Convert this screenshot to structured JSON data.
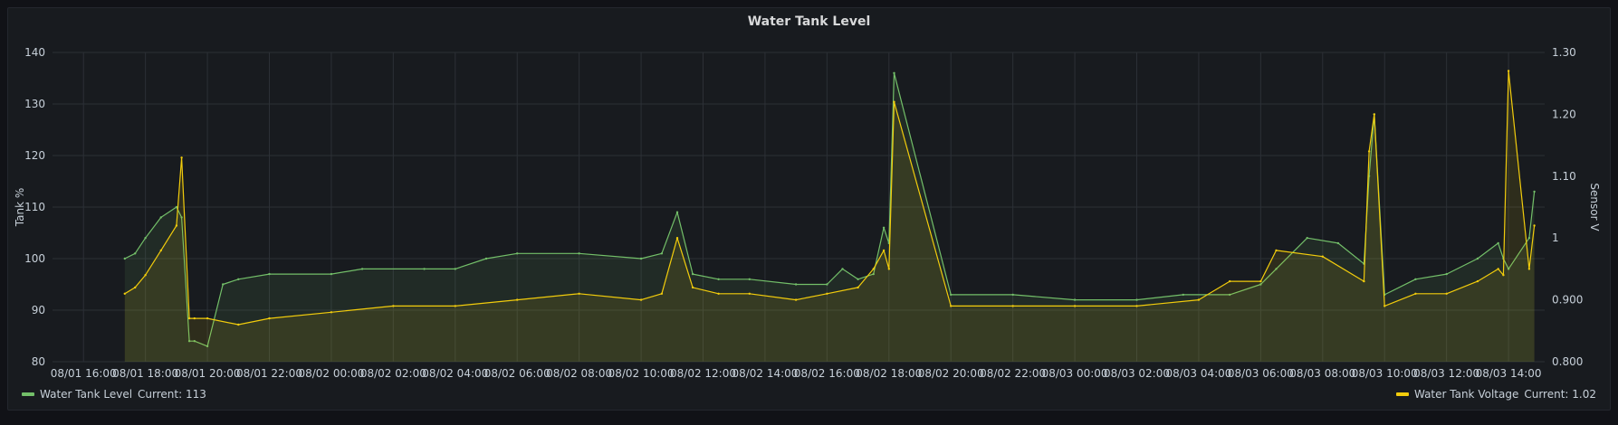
{
  "panel": {
    "title": "Water Tank Level"
  },
  "chart_data": {
    "type": "line",
    "title": "Water Tank Level",
    "ylabel_left": "Tank %",
    "ylabel_right": "Sensor V",
    "ylim_left": [
      80,
      140
    ],
    "yticks_left": [
      "140",
      "130",
      "120",
      "110",
      "100",
      "90",
      "80"
    ],
    "ylim_right": [
      0.8,
      1.3
    ],
    "yticks_right": [
      "1.30",
      "1.20",
      "1.10",
      "1",
      "0.900",
      "0.800"
    ],
    "grid": true,
    "legend": "bottom",
    "xtick_labels": [
      "08/01 16:00",
      "08/01 18:00",
      "08/01 20:00",
      "08/01 22:00",
      "08/02 00:00",
      "08/02 02:00",
      "08/02 04:00",
      "08/02 06:00",
      "08/02 08:00",
      "08/02 10:00",
      "08/02 12:00",
      "08/02 14:00",
      "08/02 16:00",
      "08/02 18:00",
      "08/02 20:00",
      "08/02 22:00",
      "08/03 00:00",
      "08/03 02:00",
      "08/03 04:00",
      "08/03 06:00",
      "08/03 08:00",
      "08/03 10:00",
      "08/03 12:00",
      "08/03 14:00"
    ],
    "series": [
      {
        "name": "Water Tank Level",
        "axis": "left",
        "color": "#73bf69",
        "legend_label": "Water Tank Level",
        "current": "Current: 113",
        "x": [
          "08/01 17:20",
          "08/01 17:40",
          "08/01 18:00",
          "08/01 18:30",
          "08/01 19:00",
          "08/01 19:10",
          "08/01 19:25",
          "08/01 19:35",
          "08/01 20:00",
          "08/01 20:30",
          "08/01 21:00",
          "08/01 22:00",
          "08/02 00:00",
          "08/02 01:00",
          "08/02 03:00",
          "08/02 04:00",
          "08/02 05:00",
          "08/02 06:00",
          "08/02 08:00",
          "08/02 10:00",
          "08/02 10:40",
          "08/02 11:10",
          "08/02 11:40",
          "08/02 12:30",
          "08/02 13:30",
          "08/02 15:00",
          "08/02 16:00",
          "08/02 16:30",
          "08/02 17:00",
          "08/02 17:30",
          "08/02 17:50",
          "08/02 18:00",
          "08/02 18:10",
          "08/02 20:00",
          "08/02 22:00",
          "08/03 00:00",
          "08/03 02:00",
          "08/03 03:30",
          "08/03 05:00",
          "08/03 06:00",
          "08/03 06:30",
          "08/03 07:30",
          "08/03 08:30",
          "08/03 09:20",
          "08/03 09:30",
          "08/03 09:40",
          "08/03 10:00",
          "08/03 11:00",
          "08/03 12:00",
          "08/03 13:00",
          "08/03 13:40",
          "08/03 13:50",
          "08/03 14:00",
          "08/03 14:40",
          "08/03 14:50"
        ],
        "values": [
          100,
          101,
          104,
          108,
          110,
          108,
          84,
          84,
          83,
          95,
          96,
          97,
          97,
          98,
          98,
          98,
          100,
          101,
          101,
          100,
          101,
          109,
          97,
          96,
          96,
          95,
          95,
          98,
          96,
          97,
          106,
          103,
          136,
          93,
          93,
          92,
          92,
          93,
          93,
          95,
          98,
          104,
          103,
          99,
          116,
          128,
          93,
          96,
          97,
          100,
          103,
          100,
          98,
          104,
          113
        ]
      },
      {
        "name": "Water Tank Voltage",
        "axis": "right",
        "color": "#f2cc0c",
        "legend_label": "Water Tank Voltage",
        "current": "Current: 1.02",
        "x": [
          "08/01 17:20",
          "08/01 17:40",
          "08/01 18:00",
          "08/01 18:30",
          "08/01 19:00",
          "08/01 19:10",
          "08/01 19:25",
          "08/01 19:35",
          "08/01 20:00",
          "08/01 21:00",
          "08/01 22:00",
          "08/02 00:00",
          "08/02 02:00",
          "08/02 04:00",
          "08/02 06:00",
          "08/02 08:00",
          "08/02 10:00",
          "08/02 10:40",
          "08/02 11:10",
          "08/02 11:40",
          "08/02 12:30",
          "08/02 13:30",
          "08/02 15:00",
          "08/02 16:00",
          "08/02 17:00",
          "08/02 17:30",
          "08/02 17:50",
          "08/02 18:00",
          "08/02 18:10",
          "08/02 20:00",
          "08/02 22:00",
          "08/03 00:00",
          "08/03 02:00",
          "08/03 04:00",
          "08/03 05:00",
          "08/03 06:00",
          "08/03 06:30",
          "08/03 08:00",
          "08/03 09:20",
          "08/03 09:30",
          "08/03 09:40",
          "08/03 10:00",
          "08/03 11:00",
          "08/03 12:00",
          "08/03 13:00",
          "08/03 13:40",
          "08/03 13:50",
          "08/03 14:00",
          "08/03 14:40",
          "08/03 14:50"
        ],
        "values": [
          0.91,
          0.92,
          0.94,
          0.98,
          1.02,
          1.13,
          0.87,
          0.87,
          0.87,
          0.86,
          0.87,
          0.88,
          0.89,
          0.89,
          0.9,
          0.91,
          0.9,
          0.91,
          1.0,
          0.92,
          0.91,
          0.91,
          0.9,
          0.91,
          0.92,
          0.95,
          0.98,
          0.95,
          1.22,
          0.89,
          0.89,
          0.89,
          0.89,
          0.9,
          0.93,
          0.93,
          0.98,
          0.97,
          0.93,
          1.14,
          1.2,
          0.89,
          0.91,
          0.91,
          0.93,
          0.95,
          0.94,
          1.27,
          0.95,
          1.02
        ]
      }
    ]
  },
  "legend": {
    "level_label": "Water Tank Level",
    "level_current": "Current: 113",
    "voltage_label": "Water Tank Voltage",
    "voltage_current": "Current: 1.02"
  }
}
